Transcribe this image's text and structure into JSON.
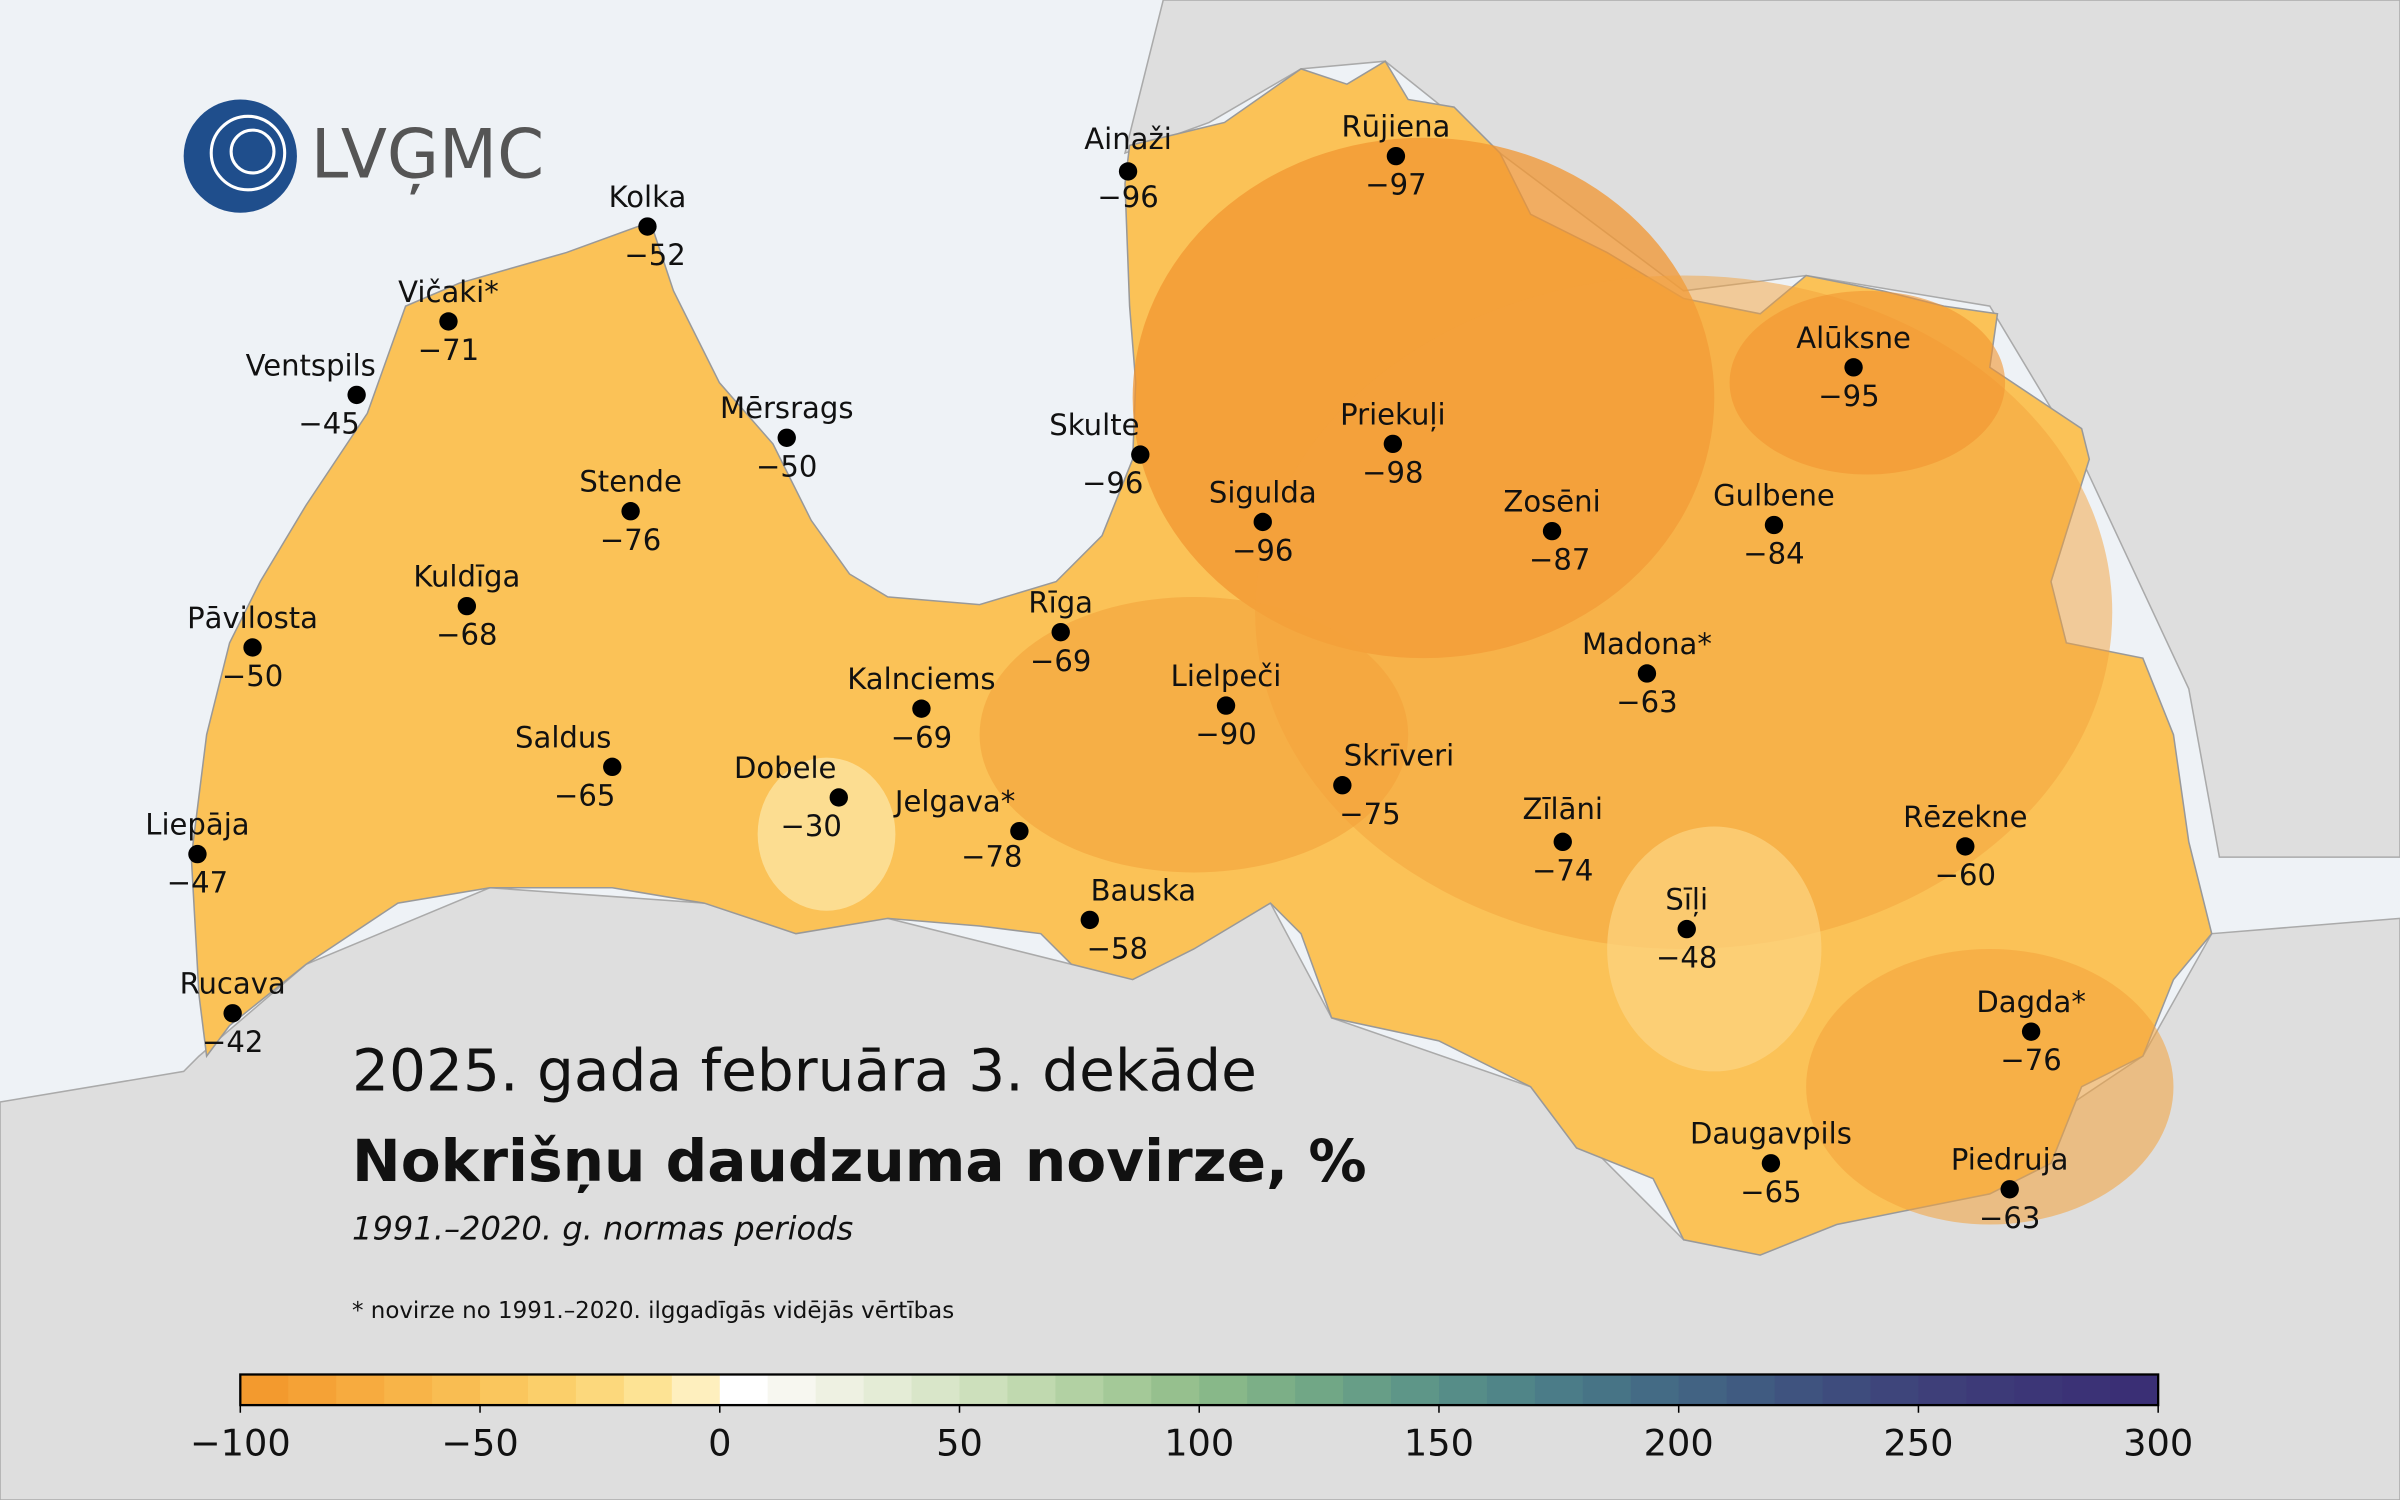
{
  "logo": "LVĢMC",
  "title": "2025. gada februāra 3. dekāde",
  "subtitle": "Nokrišņu daudzuma novirze, %",
  "period": "1991.–2020. g. normas periods",
  "note": "* novirze no 1991.–2020. ilggadīgās vidējās vērtības",
  "stations": [
    {
      "name": "Ainaži",
      "value": "−96"
    },
    {
      "name": "Rūjiena",
      "value": "−97"
    },
    {
      "name": "Kolka",
      "value": "−52"
    },
    {
      "name": "Vičaki*",
      "value": "−71"
    },
    {
      "name": "Ventspils",
      "value": "−45"
    },
    {
      "name": "Mērsrags",
      "value": "−50"
    },
    {
      "name": "Skulte",
      "value": "−96"
    },
    {
      "name": "Priekuļi",
      "value": "−98"
    },
    {
      "name": "Alūksne",
      "value": "−95"
    },
    {
      "name": "Stende",
      "value": "−76"
    },
    {
      "name": "Sigulda",
      "value": "−96"
    },
    {
      "name": "Zosēni",
      "value": "−87"
    },
    {
      "name": "Gulbene",
      "value": "−84"
    },
    {
      "name": "Kuldīga",
      "value": "−68"
    },
    {
      "name": "Pāvilosta",
      "value": "−50"
    },
    {
      "name": "Rīga",
      "value": "−69"
    },
    {
      "name": "Madona*",
      "value": "−63"
    },
    {
      "name": "Kalnciems",
      "value": "−69"
    },
    {
      "name": "Lielpeči",
      "value": "−90"
    },
    {
      "name": "Saldus",
      "value": "−65"
    },
    {
      "name": "Dobele",
      "value": "−30"
    },
    {
      "name": "Skrīveri",
      "value": "−75"
    },
    {
      "name": "Jelgava*",
      "value": "−78"
    },
    {
      "name": "Zīlāni",
      "value": "−74"
    },
    {
      "name": "Rēzekne",
      "value": "−60"
    },
    {
      "name": "Liepāja",
      "value": "−47"
    },
    {
      "name": "Bauska",
      "value": "−58"
    },
    {
      "name": "Sīļi",
      "value": "−48"
    },
    {
      "name": "Rucava",
      "value": "−42"
    },
    {
      "name": "Dagda*",
      "value": "−76"
    },
    {
      "name": "Daugavpils",
      "value": "−65"
    },
    {
      "name": "Piedruja",
      "value": "−63"
    }
  ],
  "colorbar": {
    "range": [
      -100,
      300
    ],
    "ticks": [
      {
        "value": -100,
        "label": "−100"
      },
      {
        "value": -50,
        "label": "−50"
      },
      0,
      50,
      100,
      150,
      200,
      250,
      300
    ],
    "colors": [
      "#f39a2e",
      "#f5a236",
      "#f7ab3f",
      "#f8b448",
      "#f9bd52",
      "#fac65d",
      "#fbcf6a",
      "#fcd87c",
      "#fde394",
      "#feefbe",
      "#ffffff",
      "#f7f7f0",
      "#eef1e2",
      "#e4ecd6",
      "#d9e6c9",
      "#cde0bc",
      "#c0d9af",
      "#b2d1a3",
      "#a4c998",
      "#96c08e",
      "#88b889",
      "#7caf87",
      "#71a786",
      "#679e87",
      "#5e9688",
      "#568d88",
      "#508588",
      "#4b7c88",
      "#477486",
      "#446b85",
      "#426383",
      "#405b81",
      "#3f537f",
      "#3e4c7d",
      "#3e457b",
      "#3e3f79",
      "#3d3a78",
      "#3c3677",
      "#3b3276",
      "#3a2f75"
    ]
  }
}
